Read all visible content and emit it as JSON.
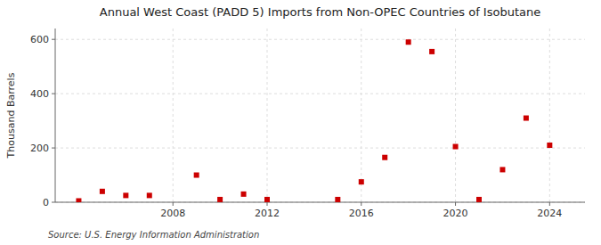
{
  "chart_data": {
    "type": "scatter",
    "title": "Annual West Coast (PADD 5) Imports from Non-OPEC Countries of Isobutane",
    "y_label": "Thousand Barrels",
    "annotations": [
      "Source: U.S. Energy Information Administration"
    ],
    "x": [
      2004,
      2005,
      2006,
      2007,
      2009,
      2010,
      2011,
      2012,
      2015,
      2016,
      2017,
      2018,
      2019,
      2020,
      2021,
      2022,
      2023,
      2024
    ],
    "values": [
      5,
      40,
      25,
      25,
      100,
      10,
      30,
      10,
      10,
      75,
      165,
      590,
      555,
      205,
      10,
      120,
      310,
      210
    ],
    "color": "#cc0000",
    "marker": "square",
    "xlim": [
      2003,
      2025.5
    ],
    "ylim": [
      0,
      640
    ],
    "xticks": [
      2008,
      2012,
      2016,
      2020,
      2024
    ],
    "yticks": [
      0,
      200,
      400,
      600
    ],
    "grid": true
  }
}
